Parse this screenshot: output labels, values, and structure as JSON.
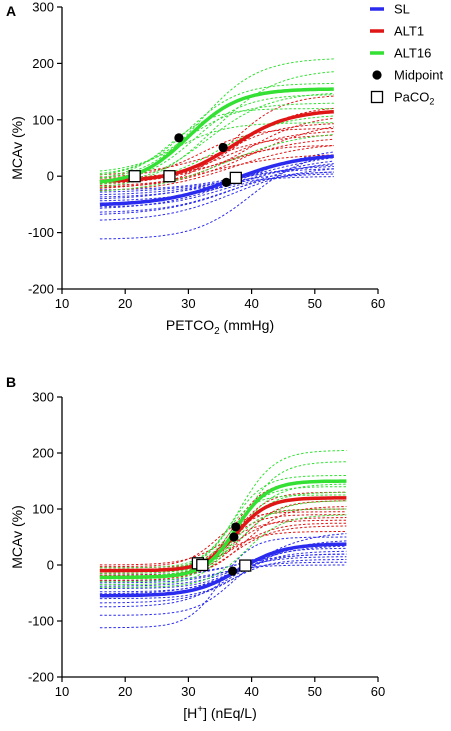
{
  "colors": {
    "SL": "#2b2bf0",
    "ALT1": "#e01616",
    "ALT16": "#33e033",
    "marker": "#000000"
  },
  "legend": {
    "items": [
      {
        "key": "SL",
        "label": "SL",
        "kind": "line"
      },
      {
        "key": "ALT1",
        "label": "ALT1",
        "kind": "line"
      },
      {
        "key": "ALT16",
        "label": "ALT16",
        "kind": "line"
      },
      {
        "key": "midpoint",
        "label": "Midpoint",
        "kind": "circle"
      },
      {
        "key": "paco2",
        "label": "PaCO",
        "sub": "2",
        "kind": "square"
      }
    ]
  },
  "chart_data": [
    {
      "panel": "A",
      "type": "line",
      "xlabel": {
        "main": "PETCO",
        "sub": "2",
        "rest": " (mmHg)"
      },
      "ylabel": "MCAv (%)",
      "xlim": [
        10,
        60
      ],
      "ylim": [
        -200,
        300
      ],
      "xticks": [
        10,
        20,
        30,
        40,
        50,
        60
      ],
      "yticks": [
        -200,
        -100,
        0,
        100,
        200,
        300
      ],
      "x_range": [
        16,
        53
      ],
      "series": [
        {
          "name": "SL",
          "color_key": "SL",
          "mean": {
            "bottom": -52,
            "top": 40,
            "x50": 37,
            "width": 5.5
          },
          "individuals": [
            {
              "bottom": -112,
              "top": 45,
              "x50": 40,
              "width": 4.5
            },
            {
              "bottom": -80,
              "top": 18,
              "x50": 37,
              "width": 5.5
            },
            {
              "bottom": -70,
              "top": 30,
              "x50": 38,
              "width": 6
            },
            {
              "bottom": -65,
              "top": 10,
              "x50": 36,
              "width": 5
            },
            {
              "bottom": -60,
              "top": 55,
              "x50": 39,
              "width": 6.5
            },
            {
              "bottom": -55,
              "top": 5,
              "x50": 35,
              "width": 4.5
            },
            {
              "bottom": -50,
              "top": 25,
              "x50": 37,
              "width": 6
            },
            {
              "bottom": -45,
              "top": 35,
              "x50": 40,
              "width": 6
            },
            {
              "bottom": -42,
              "top": 15,
              "x50": 34,
              "width": 5.5
            },
            {
              "bottom": -38,
              "top": 0,
              "x50": 33,
              "width": 5
            },
            {
              "bottom": -35,
              "top": 45,
              "x50": 41,
              "width": 7
            },
            {
              "bottom": -30,
              "top": 10,
              "x50": 36,
              "width": 6.5
            },
            {
              "bottom": -25,
              "top": 20,
              "x50": 38,
              "width": 5.5
            }
          ]
        },
        {
          "name": "ALT1",
          "color_key": "ALT1",
          "mean": {
            "bottom": -10,
            "top": 118,
            "x50": 37,
            "width": 4.5
          },
          "individuals": [
            {
              "bottom": -20,
              "top": 145,
              "x50": 37,
              "width": 4
            },
            {
              "bottom": -15,
              "top": 95,
              "x50": 35,
              "width": 4.5
            },
            {
              "bottom": -10,
              "top": 82,
              "x50": 36,
              "width": 5
            },
            {
              "bottom": -5,
              "top": 70,
              "x50": 38,
              "width": 5.5
            },
            {
              "bottom": -18,
              "top": 110,
              "x50": 39,
              "width": 5
            },
            {
              "bottom": -25,
              "top": 40,
              "x50": 33,
              "width": 6
            },
            {
              "bottom": -8,
              "top": 55,
              "x50": 35,
              "width": 4
            },
            {
              "bottom": -12,
              "top": 125,
              "x50": 38,
              "width": 4.5
            },
            {
              "bottom": 0,
              "top": 75,
              "x50": 34,
              "width": 5.5
            },
            {
              "bottom": -22,
              "top": 100,
              "x50": 40,
              "width": 6
            },
            {
              "bottom": -3,
              "top": 85,
              "x50": 32,
              "width": 4
            },
            {
              "bottom": -28,
              "top": 60,
              "x50": 37,
              "width": 6
            }
          ]
        },
        {
          "name": "ALT16",
          "color_key": "ALT16",
          "mean": {
            "bottom": -15,
            "top": 155,
            "x50": 30,
            "width": 4
          },
          "individuals": [
            {
              "bottom": -10,
              "top": 210,
              "x50": 32,
              "width": 4.5
            },
            {
              "bottom": -25,
              "top": 190,
              "x50": 34,
              "width": 5
            },
            {
              "bottom": 0,
              "top": 165,
              "x50": 30,
              "width": 4
            },
            {
              "bottom": -20,
              "top": 150,
              "x50": 33,
              "width": 5
            },
            {
              "bottom": -5,
              "top": 130,
              "x50": 29,
              "width": 4.5
            },
            {
              "bottom": -15,
              "top": 110,
              "x50": 35,
              "width": 5
            },
            {
              "bottom": 5,
              "top": 95,
              "x50": 28,
              "width": 4
            },
            {
              "bottom": -30,
              "top": 80,
              "x50": 36,
              "width": 6
            },
            {
              "bottom": -12,
              "top": 145,
              "x50": 31,
              "width": 4
            },
            {
              "bottom": -8,
              "top": 120,
              "x50": 27,
              "width": 3.5
            }
          ]
        }
      ],
      "midpoints": [
        {
          "x": 28.5,
          "y": 68
        },
        {
          "x": 35.5,
          "y": 51
        },
        {
          "x": 36,
          "y": -11
        }
      ],
      "paco2_points": [
        {
          "x": 21.5,
          "y": 0
        },
        {
          "x": 27,
          "y": 0
        },
        {
          "x": 37.5,
          "y": -3
        }
      ]
    },
    {
      "panel": "B",
      "type": "line",
      "xlabel": {
        "main": "[H",
        "sup": "+",
        "rest": "]  (nEq/L)"
      },
      "ylabel": "MCAv (%)",
      "xlim": [
        10,
        60
      ],
      "ylim": [
        -200,
        300
      ],
      "xticks": [
        10,
        20,
        30,
        40,
        50,
        60
      ],
      "yticks": [
        -200,
        -100,
        0,
        100,
        200,
        300
      ],
      "x_range": [
        16,
        55
      ],
      "series": [
        {
          "name": "SL",
          "color_key": "SL",
          "mean": {
            "bottom": -55,
            "top": 38,
            "x50": 38,
            "width": 3.5
          },
          "individuals": [
            {
              "bottom": -112,
              "top": 50,
              "x50": 35,
              "width": 2.5
            },
            {
              "bottom": -90,
              "top": 30,
              "x50": 37,
              "width": 3
            },
            {
              "bottom": -75,
              "top": 20,
              "x50": 36,
              "width": 3.5
            },
            {
              "bottom": -68,
              "top": 45,
              "x50": 39,
              "width": 4
            },
            {
              "bottom": -60,
              "top": 10,
              "x50": 37,
              "width": 3
            },
            {
              "bottom": -52,
              "top": 60,
              "x50": 40,
              "width": 4.5
            },
            {
              "bottom": -48,
              "top": 25,
              "x50": 38,
              "width": 3.5
            },
            {
              "bottom": -42,
              "top": 5,
              "x50": 36,
              "width": 3
            },
            {
              "bottom": -38,
              "top": 35,
              "x50": 39,
              "width": 4
            },
            {
              "bottom": -32,
              "top": 15,
              "x50": 37,
              "width": 3.5
            },
            {
              "bottom": -28,
              "top": 0,
              "x50": 35,
              "width": 3
            },
            {
              "bottom": -22,
              "top": 40,
              "x50": 40,
              "width": 4.5
            },
            {
              "bottom": -18,
              "top": 20,
              "x50": 38,
              "width": 4
            }
          ]
        },
        {
          "name": "ALT1",
          "color_key": "ALT1",
          "mean": {
            "bottom": -10,
            "top": 120,
            "x50": 37.5,
            "width": 2.5
          },
          "individuals": [
            {
              "bottom": -20,
              "top": 150,
              "x50": 37,
              "width": 2.5
            },
            {
              "bottom": -15,
              "top": 100,
              "x50": 36,
              "width": 2.5
            },
            {
              "bottom": -10,
              "top": 85,
              "x50": 37,
              "width": 3
            },
            {
              "bottom": -5,
              "top": 75,
              "x50": 38,
              "width": 3
            },
            {
              "bottom": -18,
              "top": 115,
              "x50": 38.5,
              "width": 2.8
            },
            {
              "bottom": -25,
              "top": 60,
              "x50": 35,
              "width": 3
            },
            {
              "bottom": -8,
              "top": 90,
              "x50": 36,
              "width": 2.5
            },
            {
              "bottom": -12,
              "top": 130,
              "x50": 37.5,
              "width": 2.5
            },
            {
              "bottom": 0,
              "top": 80,
              "x50": 35.5,
              "width": 3
            },
            {
              "bottom": -22,
              "top": 105,
              "x50": 39,
              "width": 3
            },
            {
              "bottom": -3,
              "top": 95,
              "x50": 34.5,
              "width": 2.5
            },
            {
              "bottom": -28,
              "top": 70,
              "x50": 37,
              "width": 3.2
            }
          ]
        },
        {
          "name": "ALT16",
          "color_key": "ALT16",
          "mean": {
            "bottom": -22,
            "top": 150,
            "x50": 37.5,
            "width": 2.5
          },
          "individuals": [
            {
              "bottom": -10,
              "top": 205,
              "x50": 38,
              "width": 2.8
            },
            {
              "bottom": -25,
              "top": 185,
              "x50": 38.5,
              "width": 2.8
            },
            {
              "bottom": -5,
              "top": 160,
              "x50": 37,
              "width": 2.5
            },
            {
              "bottom": -20,
              "top": 145,
              "x50": 38,
              "width": 3
            },
            {
              "bottom": -30,
              "top": 130,
              "x50": 37.5,
              "width": 2.8
            },
            {
              "bottom": -15,
              "top": 115,
              "x50": 38.5,
              "width": 3
            },
            {
              "bottom": -35,
              "top": 100,
              "x50": 36.5,
              "width": 2.5
            },
            {
              "bottom": -40,
              "top": 90,
              "x50": 39,
              "width": 3
            },
            {
              "bottom": -12,
              "top": 140,
              "x50": 37,
              "width": 2.5
            },
            {
              "bottom": -8,
              "top": 125,
              "x50": 36,
              "width": 2.2
            }
          ]
        }
      ],
      "midpoints": [
        {
          "x": 37.5,
          "y": 68
        },
        {
          "x": 37.2,
          "y": 50
        },
        {
          "x": 37,
          "y": -11
        }
      ],
      "paco2_points": [
        {
          "x": 31.5,
          "y": 3
        },
        {
          "x": 32.2,
          "y": 0
        },
        {
          "x": 39,
          "y": -1
        }
      ]
    }
  ]
}
